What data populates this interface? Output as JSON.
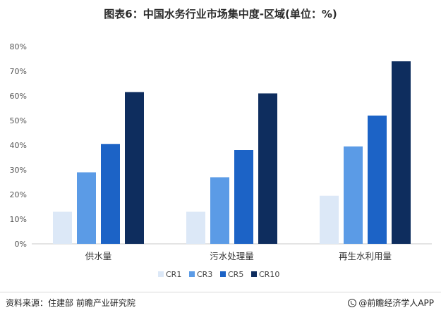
{
  "title": "图表6：中国水务行业市场集中度-区域(单位：%)",
  "footer": {
    "source": "资料来源：住建部 前瞻产业研究院",
    "brand": "@前瞻经济学人APP",
    "brand_icon": "brand-logo-icon"
  },
  "colors": {
    "CR1": "#dce8f7",
    "CR3": "#5b9be6",
    "CR5": "#1c63c6",
    "CR10": "#0e2d5e",
    "axis": "#c8c8c8"
  },
  "chart_data": {
    "type": "bar",
    "title": "图表6：中国水务行业市场集中度-区域(单位：%)",
    "categories": [
      "供水量",
      "污水处理量",
      "再生水利用量"
    ],
    "series": [
      {
        "name": "CR1",
        "values": [
          13,
          13,
          19.5
        ]
      },
      {
        "name": "CR3",
        "values": [
          29,
          27,
          39.5
        ]
      },
      {
        "name": "CR5",
        "values": [
          40.5,
          38,
          52
        ]
      },
      {
        "name": "CR10",
        "values": [
          61.5,
          61,
          74
        ]
      }
    ],
    "ylim": [
      0,
      80
    ],
    "yticks": [
      "0%",
      "10%",
      "20%",
      "30%",
      "40%",
      "50%",
      "60%",
      "70%",
      "80%"
    ],
    "xlabel": "",
    "ylabel": "",
    "grid": false,
    "legend_position": "bottom-center"
  }
}
